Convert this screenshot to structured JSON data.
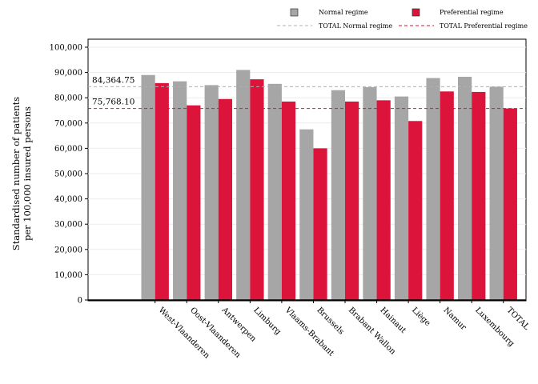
{
  "chart_data": {
    "type": "bar",
    "ylabel_lines": [
      "Standardised number of patients",
      "per 100,000 insured persons"
    ],
    "ylim": [
      0,
      100000
    ],
    "yticks": [
      0,
      10000,
      20000,
      30000,
      40000,
      50000,
      60000,
      70000,
      80000,
      90000,
      100000
    ],
    "ytick_labels": [
      "0",
      "10,000",
      "20,000",
      "30,000",
      "40,000",
      "50,000",
      "60,000",
      "70,000",
      "80,000",
      "90,000",
      "100,000"
    ],
    "grid": true,
    "legend_position": "top",
    "categories": [
      "West-Vlaanderen",
      "Oost-Vlaanderen",
      "Antwerpen",
      "Limburg",
      "Vlaams-Brabant",
      "Brussels",
      "Brabant Wallon",
      "Hainaut",
      "Liège",
      "Namur",
      "Luxembourg",
      "TOTAL"
    ],
    "series": [
      {
        "name": "Normal regime",
        "color": "#a6a6a6",
        "values": [
          89000,
          86500,
          85000,
          91000,
          85500,
          67500,
          83000,
          84200,
          80500,
          87800,
          88300,
          84365
        ]
      },
      {
        "name": "Preferential regime",
        "color": "#dc143c",
        "values": [
          85800,
          77000,
          79500,
          87300,
          78500,
          60000,
          78500,
          79000,
          70800,
          82500,
          82300,
          75768
        ]
      }
    ],
    "reference_lines": [
      {
        "name": "TOTAL Normal regime",
        "value": 84364.75,
        "label": "84,364.75",
        "color": "#b0b0b0"
      },
      {
        "name": "TOTAL Preferential regime",
        "value": 75768.1,
        "label": "75,768.10",
        "color": "#dc143c"
      }
    ]
  }
}
